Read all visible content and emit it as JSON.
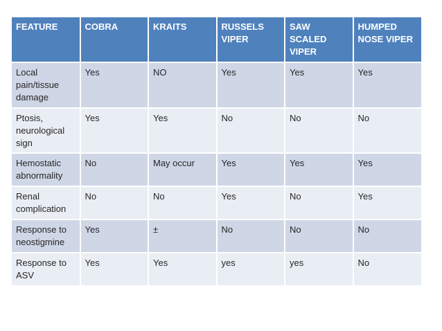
{
  "table": {
    "columns": [
      "FEATURE",
      "COBRA",
      "KRAITS",
      "RUSSELS VIPER",
      "SAW SCALED VIPER",
      "HUMPED NOSE VIPER"
    ],
    "rows": [
      {
        "feature": "Local pain/tissue damage",
        "values": [
          "Yes",
          "NO",
          "Yes",
          "Yes",
          "Yes"
        ]
      },
      {
        "feature": "Ptosis, neurological sign",
        "values": [
          "Yes",
          "Yes",
          "No",
          "No",
          "No"
        ]
      },
      {
        "feature": "Hemostatic abnormality",
        "values": [
          "No",
          "May occur",
          "Yes",
          "Yes",
          "Yes"
        ]
      },
      {
        "feature": "Renal complication",
        "values": [
          "No",
          "No",
          "Yes",
          "No",
          "Yes"
        ]
      },
      {
        "feature": "Response to neostigmine",
        "values": [
          "Yes",
          "±",
          "No",
          "No",
          "No"
        ]
      },
      {
        "feature": "Response to ASV",
        "values": [
          "Yes",
          "Yes",
          "yes",
          "yes",
          "No"
        ]
      }
    ],
    "colors": {
      "header_bg": "#4F81BD",
      "header_text": "#FFFFFF",
      "row_band_dark": "#CFD6E6",
      "row_band_light": "#E9EDF4",
      "body_text": "#262626",
      "grid_line": "#FFFFFF",
      "page_bg": "#FFFFFF"
    }
  }
}
